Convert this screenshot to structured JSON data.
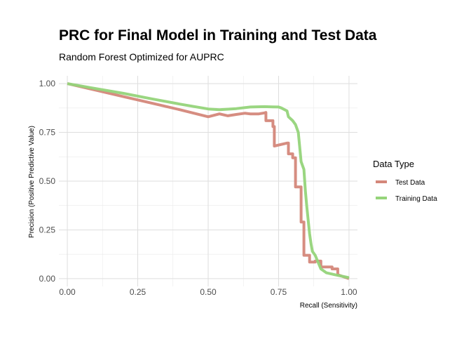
{
  "chart_data": {
    "type": "line",
    "title": "PRC for Final Model in Training and Test Data",
    "subtitle": "Random Forest Optimized for AUPRC",
    "xlabel": "Recall (Sensitivity)",
    "ylabel": "Precision (Positive Predictive Value)",
    "xlim": [
      -0.03,
      1.03
    ],
    "ylim": [
      -0.04,
      1.04
    ],
    "x_ticks": [
      "0.00",
      "0.25",
      "0.50",
      "0.75",
      "1.00"
    ],
    "y_ticks": [
      "0.00",
      "0.25",
      "0.50",
      "0.75",
      "1.00"
    ],
    "grid": true,
    "legend": {
      "title": "Data Type",
      "placement": "right"
    },
    "series": [
      {
        "name": "Test Data",
        "color": "#d4877a",
        "x": [
          0.0,
          0.1,
          0.2,
          0.3,
          0.4,
          0.5,
          0.54,
          0.57,
          0.6,
          0.63,
          0.65,
          0.68,
          0.7,
          0.705,
          0.705,
          0.705,
          0.73,
          0.73,
          0.735,
          0.735,
          0.78,
          0.785,
          0.785,
          0.8,
          0.8,
          0.81,
          0.81,
          0.83,
          0.83,
          0.84,
          0.84,
          0.86,
          0.86,
          0.88,
          0.88,
          0.9,
          0.9,
          0.94,
          0.94,
          0.96,
          0.96,
          0.98,
          1.0
        ],
        "y": [
          1.0,
          0.967,
          0.933,
          0.9,
          0.866,
          0.83,
          0.845,
          0.835,
          0.842,
          0.848,
          0.845,
          0.845,
          0.85,
          0.852,
          0.85,
          0.81,
          0.81,
          0.78,
          0.78,
          0.68,
          0.695,
          0.695,
          0.64,
          0.64,
          0.62,
          0.62,
          0.47,
          0.47,
          0.29,
          0.29,
          0.12,
          0.12,
          0.085,
          0.085,
          0.09,
          0.09,
          0.06,
          0.06,
          0.05,
          0.05,
          0.02,
          0.01,
          0.0
        ]
      },
      {
        "name": "Training Data",
        "color": "#95d47a",
        "x": [
          0.0,
          0.1,
          0.2,
          0.3,
          0.4,
          0.5,
          0.54,
          0.6,
          0.65,
          0.7,
          0.73,
          0.75,
          0.76,
          0.78,
          0.785,
          0.8,
          0.81,
          0.82,
          0.83,
          0.84,
          0.845,
          0.85,
          0.855,
          0.86,
          0.865,
          0.87,
          0.88,
          0.9,
          0.92,
          0.95,
          1.0
        ],
        "y": [
          1.0,
          0.975,
          0.95,
          0.922,
          0.895,
          0.87,
          0.866,
          0.872,
          0.88,
          0.882,
          0.881,
          0.88,
          0.875,
          0.86,
          0.83,
          0.81,
          0.79,
          0.75,
          0.6,
          0.56,
          0.45,
          0.37,
          0.3,
          0.23,
          0.18,
          0.14,
          0.12,
          0.05,
          0.03,
          0.02,
          0.005
        ]
      }
    ]
  }
}
